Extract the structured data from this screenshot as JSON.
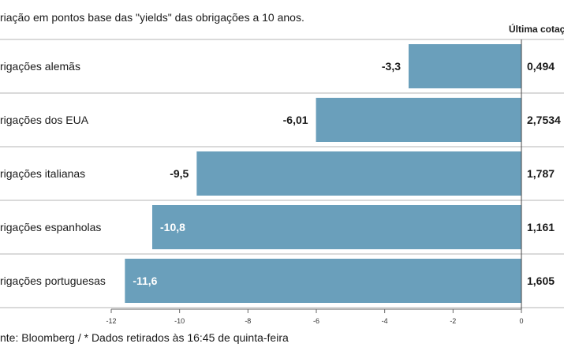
{
  "chart_data": {
    "type": "bar",
    "orientation": "horizontal",
    "subtitle": "riação em pontos base das \"yields\" das obrigações a 10 anos.",
    "last_quote_header": "Última cotação",
    "categories": [
      "rigações alemãs",
      "rigações dos EUA",
      "rigações italianas",
      "rigações espanholas",
      "rigações portuguesas"
    ],
    "values": [
      -3.3,
      -6.01,
      -9.5,
      -10.8,
      -11.6
    ],
    "value_labels": [
      "-3,3",
      "-6,01",
      "-9,5",
      "-10,8",
      "-11,6"
    ],
    "last_quotes": [
      "0,494",
      "2,7534",
      "1,787",
      "1,161",
      "1,605"
    ],
    "xlim": [
      -12,
      0
    ],
    "xticks": [
      -12,
      -10,
      -8,
      -6,
      -4,
      -2,
      0
    ],
    "bar_color": "#6a9fbb",
    "grid": false,
    "source": "nte: Bloomberg / * Dados retirados às 16:45 de quinta-feira"
  }
}
